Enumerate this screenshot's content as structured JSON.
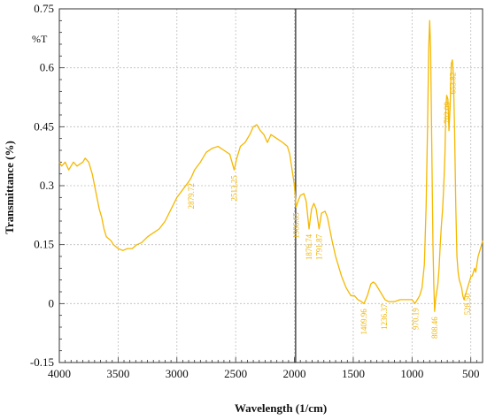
{
  "chart_data": {
    "type": "line",
    "title": "",
    "xlabel": "Wavelength (1/cm)",
    "ylabel": "Transmittance (%)",
    "unit_label": "%T",
    "xlim": [
      4000,
      400
    ],
    "ylim": [
      -0.15,
      0.75
    ],
    "x_ticks": [
      4000,
      3500,
      3000,
      2500,
      2000,
      1500,
      1000,
      500
    ],
    "y_ticks": [
      -0.15,
      0,
      0.15,
      0.3,
      0.45,
      0.6,
      0.75
    ],
    "x_tick_labels": [
      "4000",
      "3500",
      "3000",
      "2500",
      "2000",
      "1500",
      "1000",
      "500"
    ],
    "y_tick_labels": [
      "-0.15",
      "0",
      "0.15",
      "0.3",
      "0.45",
      "0.6",
      "0.75"
    ],
    "grid": true,
    "cursor_x": 1990,
    "series": [
      {
        "color": "#f5b800",
        "points": [
          [
            4000,
            0.36
          ],
          [
            3980,
            0.35
          ],
          [
            3950,
            0.36
          ],
          [
            3920,
            0.34
          ],
          [
            3880,
            0.36
          ],
          [
            3850,
            0.35
          ],
          [
            3800,
            0.36
          ],
          [
            3780,
            0.37
          ],
          [
            3750,
            0.36
          ],
          [
            3720,
            0.33
          ],
          [
            3700,
            0.3
          ],
          [
            3680,
            0.27
          ],
          [
            3660,
            0.24
          ],
          [
            3640,
            0.22
          ],
          [
            3620,
            0.19
          ],
          [
            3600,
            0.17
          ],
          [
            3580,
            0.165
          ],
          [
            3560,
            0.16
          ],
          [
            3540,
            0.15
          ],
          [
            3500,
            0.14
          ],
          [
            3460,
            0.135
          ],
          [
            3420,
            0.14
          ],
          [
            3380,
            0.14
          ],
          [
            3340,
            0.15
          ],
          [
            3300,
            0.155
          ],
          [
            3250,
            0.17
          ],
          [
            3200,
            0.18
          ],
          [
            3150,
            0.19
          ],
          [
            3100,
            0.21
          ],
          [
            3050,
            0.24
          ],
          [
            3000,
            0.27
          ],
          [
            2950,
            0.29
          ],
          [
            2900,
            0.31
          ],
          [
            2879,
            0.32
          ],
          [
            2850,
            0.34
          ],
          [
            2800,
            0.36
          ],
          [
            2750,
            0.385
          ],
          [
            2700,
            0.395
          ],
          [
            2650,
            0.4
          ],
          [
            2600,
            0.39
          ],
          [
            2550,
            0.38
          ],
          [
            2513,
            0.34
          ],
          [
            2490,
            0.37
          ],
          [
            2460,
            0.4
          ],
          [
            2420,
            0.41
          ],
          [
            2380,
            0.43
          ],
          [
            2350,
            0.45
          ],
          [
            2320,
            0.455
          ],
          [
            2290,
            0.44
          ],
          [
            2260,
            0.43
          ],
          [
            2230,
            0.41
          ],
          [
            2200,
            0.43
          ],
          [
            2150,
            0.42
          ],
          [
            2100,
            0.41
          ],
          [
            2060,
            0.4
          ],
          [
            2040,
            0.38
          ],
          [
            2020,
            0.34
          ],
          [
            2000,
            0.3
          ],
          [
            1986,
            0.245
          ],
          [
            1970,
            0.26
          ],
          [
            1950,
            0.275
          ],
          [
            1920,
            0.28
          ],
          [
            1900,
            0.26
          ],
          [
            1876,
            0.19
          ],
          [
            1855,
            0.24
          ],
          [
            1835,
            0.255
          ],
          [
            1815,
            0.24
          ],
          [
            1791,
            0.19
          ],
          [
            1770,
            0.23
          ],
          [
            1740,
            0.235
          ],
          [
            1720,
            0.22
          ],
          [
            1700,
            0.19
          ],
          [
            1680,
            0.16
          ],
          [
            1650,
            0.12
          ],
          [
            1620,
            0.09
          ],
          [
            1600,
            0.07
          ],
          [
            1560,
            0.04
          ],
          [
            1520,
            0.02
          ],
          [
            1490,
            0.02
          ],
          [
            1460,
            0.01
          ],
          [
            1430,
            0.005
          ],
          [
            1409,
            0.0
          ],
          [
            1380,
            0.02
          ],
          [
            1350,
            0.05
          ],
          [
            1330,
            0.055
          ],
          [
            1310,
            0.05
          ],
          [
            1280,
            0.035
          ],
          [
            1250,
            0.02
          ],
          [
            1230,
            0.01
          ],
          [
            1200,
            0.005
          ],
          [
            1150,
            0.005
          ],
          [
            1100,
            0.01
          ],
          [
            1050,
            0.01
          ],
          [
            1000,
            0.01
          ],
          [
            975,
            0.0
          ],
          [
            955,
            0.01
          ],
          [
            935,
            0.02
          ],
          [
            915,
            0.04
          ],
          [
            895,
            0.1
          ],
          [
            880,
            0.25
          ],
          [
            868,
            0.45
          ],
          [
            858,
            0.65
          ],
          [
            850,
            0.72
          ],
          [
            842,
            0.65
          ],
          [
            832,
            0.4
          ],
          [
            822,
            0.15
          ],
          [
            815,
            0.05
          ],
          [
            808,
            -0.02
          ],
          [
            800,
            0.01
          ],
          [
            790,
            0.03
          ],
          [
            780,
            0.05
          ],
          [
            770,
            0.09
          ],
          [
            760,
            0.15
          ],
          [
            750,
            0.2
          ],
          [
            740,
            0.24
          ],
          [
            730,
            0.3
          ],
          [
            720,
            0.38
          ],
          [
            712,
            0.5
          ],
          [
            705,
            0.53
          ],
          [
            695,
            0.52
          ],
          [
            686,
            0.44
          ],
          [
            676,
            0.5
          ],
          [
            666,
            0.61
          ],
          [
            657,
            0.62
          ],
          [
            648,
            0.58
          ],
          [
            638,
            0.44
          ],
          [
            628,
            0.25
          ],
          [
            618,
            0.12
          ],
          [
            608,
            0.08
          ],
          [
            598,
            0.06
          ],
          [
            588,
            0.05
          ],
          [
            578,
            0.04
          ],
          [
            568,
            0.02
          ],
          [
            558,
            0.01
          ],
          [
            548,
            0.02
          ],
          [
            538,
            0.03
          ],
          [
            528,
            0.04
          ],
          [
            518,
            0.05
          ],
          [
            508,
            0.06
          ],
          [
            498,
            0.07
          ],
          [
            488,
            0.07
          ],
          [
            478,
            0.08
          ],
          [
            468,
            0.09
          ],
          [
            458,
            0.08
          ],
          [
            448,
            0.1
          ],
          [
            438,
            0.12
          ],
          [
            428,
            0.13
          ],
          [
            418,
            0.14
          ],
          [
            408,
            0.15
          ],
          [
            400,
            0.16
          ]
        ]
      }
    ],
    "annotations": [
      {
        "text": "2879.72",
        "x": 2879
      },
      {
        "text": "2513.25",
        "x": 2513
      },
      {
        "text": "1986.65",
        "x": 1986
      },
      {
        "text": "1876.74",
        "x": 1876
      },
      {
        "text": "1791.87",
        "x": 1791
      },
      {
        "text": "1409.96",
        "x": 1409
      },
      {
        "text": "1236.37",
        "x": 1236
      },
      {
        "text": "970.19",
        "x": 970
      },
      {
        "text": "808.46",
        "x": 808
      },
      {
        "text": "702.09",
        "x": 702
      },
      {
        "text": "653.82",
        "x": 653
      },
      {
        "text": "528.50",
        "x": 528
      }
    ]
  }
}
